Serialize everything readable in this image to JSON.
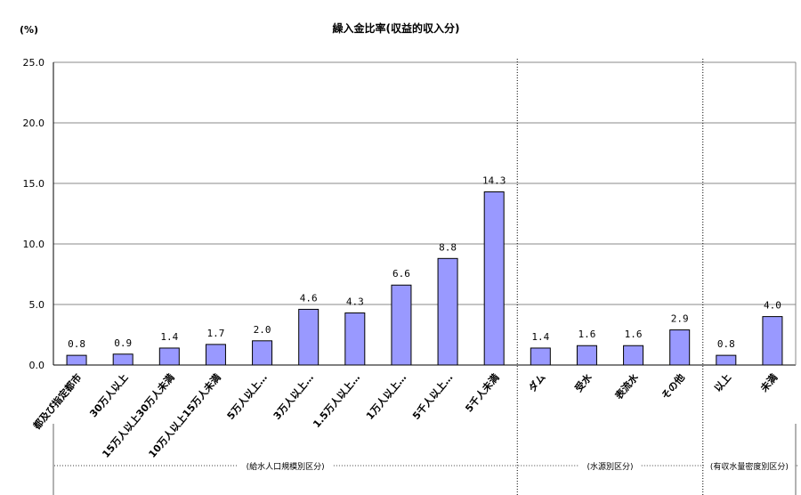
{
  "chart_data": {
    "type": "bar",
    "title": "繰入金比率(収益的収入分)",
    "ylabel": "(%)",
    "ylim": [
      0,
      25
    ],
    "yticks": [
      "0.0",
      "5.0",
      "10.0",
      "15.0",
      "20.0",
      "25.0"
    ],
    "grid": true,
    "legend": "none",
    "bar_color": "#9999ff",
    "categories": [
      "都及び指定都市",
      "30万人以上",
      "15万人以上30万人未満",
      "10万人以上15万人未満",
      "5万人以上…",
      "3万人以上…",
      "1.5万人以上…",
      "1万人以上…",
      "5千人以上…",
      "5千人未満",
      "ダム",
      "受水",
      "表流水",
      "その他",
      "以上",
      "未満"
    ],
    "values": [
      0.8,
      0.9,
      1.4,
      1.7,
      2.0,
      4.6,
      4.3,
      6.6,
      8.8,
      14.3,
      1.4,
      1.6,
      1.6,
      2.9,
      0.8,
      4.0
    ],
    "value_labels": [
      "0.8",
      "0.9",
      "1.4",
      "1.7",
      "2.0",
      "4.6",
      "4.3",
      "6.6",
      "8.8",
      "14.3",
      "1.4",
      "1.6",
      "1.6",
      "2.9",
      "0.8",
      "4.0"
    ],
    "groups": [
      {
        "label": "(給水人口規模別区分)",
        "count": 10
      },
      {
        "label": "(水源別区分)",
        "count": 4
      },
      {
        "label": "(有収水量密度別区分)",
        "count": 2
      }
    ]
  }
}
